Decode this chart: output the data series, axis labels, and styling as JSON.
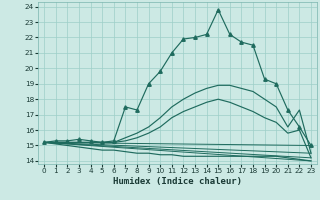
{
  "xlabel": "Humidex (Indice chaleur)",
  "xlim": [
    -0.5,
    23.5
  ],
  "ylim": [
    13.8,
    24.3
  ],
  "yticks": [
    14,
    15,
    16,
    17,
    18,
    19,
    20,
    21,
    22,
    23,
    24
  ],
  "xticks": [
    0,
    1,
    2,
    3,
    4,
    5,
    6,
    7,
    8,
    9,
    10,
    11,
    12,
    13,
    14,
    15,
    16,
    17,
    18,
    19,
    20,
    21,
    22,
    23
  ],
  "bg_color": "#cce9e4",
  "grid_color": "#9dcfc8",
  "line_color": "#1f6b5e",
  "main_curve": [
    15.2,
    15.3,
    15.3,
    15.4,
    15.3,
    15.2,
    15.3,
    17.5,
    17.3,
    19.0,
    19.8,
    21.0,
    21.9,
    22.0,
    22.2,
    23.8,
    22.2,
    21.7,
    21.5,
    19.3,
    19.0,
    17.3,
    16.2,
    15.0
  ],
  "line2": [
    15.2,
    15.2,
    15.2,
    15.2,
    15.2,
    15.2,
    15.2,
    15.5,
    15.8,
    16.2,
    16.8,
    17.5,
    18.0,
    18.4,
    18.7,
    18.9,
    18.9,
    18.7,
    18.5,
    18.0,
    17.5,
    16.2,
    17.3,
    14.5
  ],
  "line3": [
    15.2,
    15.2,
    15.2,
    15.2,
    15.2,
    15.2,
    15.2,
    15.3,
    15.5,
    15.8,
    16.2,
    16.8,
    17.2,
    17.5,
    17.8,
    18.0,
    17.8,
    17.5,
    17.2,
    16.8,
    16.5,
    15.8,
    16.0,
    14.2
  ],
  "line4": [
    15.2,
    15.1,
    15.0,
    14.9,
    14.8,
    14.7,
    14.7,
    14.6,
    14.5,
    14.5,
    14.4,
    14.4,
    14.3,
    14.3,
    14.3,
    14.3,
    14.3,
    14.3,
    14.3,
    14.3,
    14.3,
    14.2,
    14.1,
    14.0
  ],
  "fan_lines": [
    [
      0,
      15.2,
      23,
      15.0
    ],
    [
      0,
      15.2,
      23,
      14.5
    ],
    [
      0,
      15.2,
      23,
      14.2
    ],
    [
      0,
      15.2,
      23,
      14.0
    ]
  ]
}
